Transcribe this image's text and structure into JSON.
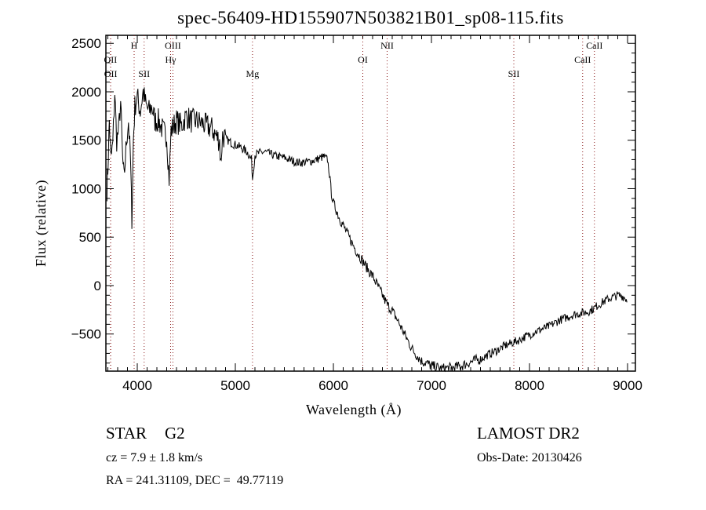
{
  "chart_data": {
    "type": "line",
    "title": "spec-56409-HD155907N503821B01_sp08-115.fits",
    "xlabel": "Wavelength (Å)",
    "ylabel": "Flux (relative)",
    "xlim": [
      3680,
      9080
    ],
    "ylim": [
      -883,
      2583
    ],
    "xticks": [
      4000,
      5000,
      6000,
      7000,
      8000,
      9000
    ],
    "yticks": [
      -500,
      0,
      500,
      1000,
      1500,
      2000,
      2500
    ],
    "grid": false,
    "series": [
      {
        "name": "spectrum",
        "points": [
          [
            3690,
            1000
          ],
          [
            3700,
            1200
          ],
          [
            3715,
            1700
          ],
          [
            3730,
            1300
          ],
          [
            3750,
            1450
          ],
          [
            3770,
            2000
          ],
          [
            3790,
            1500
          ],
          [
            3810,
            1600
          ],
          [
            3830,
            1900
          ],
          [
            3850,
            1300
          ],
          [
            3865,
            1100
          ],
          [
            3890,
            1500
          ],
          [
            3910,
            1700
          ],
          [
            3930,
            1300
          ],
          [
            3945,
            700
          ],
          [
            3960,
            1500
          ],
          [
            3975,
            1850
          ],
          [
            4000,
            1950
          ],
          [
            4030,
            1800
          ],
          [
            4060,
            2000
          ],
          [
            4090,
            1850
          ],
          [
            4120,
            1800
          ],
          [
            4150,
            1850
          ],
          [
            4180,
            1700
          ],
          [
            4220,
            1700
          ],
          [
            4260,
            1600
          ],
          [
            4300,
            1550
          ],
          [
            4325,
            1100
          ],
          [
            4345,
            1600
          ],
          [
            4370,
            1650
          ],
          [
            4400,
            1700
          ],
          [
            4450,
            1650
          ],
          [
            4500,
            1750
          ],
          [
            4550,
            1700
          ],
          [
            4600,
            1700
          ],
          [
            4650,
            1680
          ],
          [
            4700,
            1650
          ],
          [
            4760,
            1620
          ],
          [
            4800,
            1550
          ],
          [
            4840,
            1500
          ],
          [
            4850,
            1250
          ],
          [
            4870,
            1550
          ],
          [
            4920,
            1500
          ],
          [
            4980,
            1460
          ],
          [
            5050,
            1430
          ],
          [
            5120,
            1380
          ],
          [
            5165,
            1300
          ],
          [
            5175,
            1100
          ],
          [
            5200,
            1350
          ],
          [
            5250,
            1370
          ],
          [
            5300,
            1380
          ],
          [
            5350,
            1360
          ],
          [
            5400,
            1340
          ],
          [
            5450,
            1330
          ],
          [
            5500,
            1320
          ],
          [
            5550,
            1300
          ],
          [
            5600,
            1280
          ],
          [
            5650,
            1270
          ],
          [
            5700,
            1270
          ],
          [
            5750,
            1280
          ],
          [
            5800,
            1290
          ],
          [
            5850,
            1310
          ],
          [
            5900,
            1330
          ],
          [
            5940,
            1300
          ],
          [
            5960,
            1150
          ],
          [
            5980,
            950
          ],
          [
            6000,
            850
          ],
          [
            6030,
            780
          ],
          [
            6060,
            700
          ],
          [
            6100,
            620
          ],
          [
            6150,
            520
          ],
          [
            6200,
            420
          ],
          [
            6250,
            330
          ],
          [
            6300,
            250
          ],
          [
            6350,
            170
          ],
          [
            6400,
            100
          ],
          [
            6450,
            0
          ],
          [
            6500,
            -100
          ],
          [
            6550,
            -200
          ],
          [
            6600,
            -260
          ],
          [
            6650,
            -350
          ],
          [
            6700,
            -450
          ],
          [
            6750,
            -550
          ],
          [
            6800,
            -650
          ],
          [
            6850,
            -720
          ],
          [
            6900,
            -780
          ],
          [
            6950,
            -800
          ],
          [
            7000,
            -830
          ],
          [
            7050,
            -840
          ],
          [
            7100,
            -860
          ],
          [
            7150,
            -850
          ],
          [
            7200,
            -850
          ],
          [
            7250,
            -840
          ],
          [
            7300,
            -830
          ],
          [
            7350,
            -810
          ],
          [
            7400,
            -790
          ],
          [
            7450,
            -770
          ],
          [
            7500,
            -760
          ],
          [
            7550,
            -730
          ],
          [
            7600,
            -700
          ],
          [
            7650,
            -680
          ],
          [
            7700,
            -650
          ],
          [
            7750,
            -620
          ],
          [
            7800,
            -600
          ],
          [
            7850,
            -580
          ],
          [
            7900,
            -560
          ],
          [
            7950,
            -530
          ],
          [
            8000,
            -510
          ],
          [
            8050,
            -480
          ],
          [
            8100,
            -460
          ],
          [
            8150,
            -440
          ],
          [
            8200,
            -420
          ],
          [
            8250,
            -390
          ],
          [
            8300,
            -360
          ],
          [
            8350,
            -340
          ],
          [
            8400,
            -320
          ],
          [
            8450,
            -300
          ],
          [
            8500,
            -290
          ],
          [
            8550,
            -280
          ],
          [
            8600,
            -270
          ],
          [
            8650,
            -240
          ],
          [
            8700,
            -200
          ],
          [
            8750,
            -170
          ],
          [
            8800,
            -140
          ],
          [
            8850,
            -120
          ],
          [
            8900,
            -100
          ],
          [
            8950,
            -110
          ],
          [
            9000,
            -150
          ]
        ]
      }
    ],
    "line_markers": [
      {
        "label": "OII",
        "wavelength": 3727,
        "row": 1
      },
      {
        "label": "OII",
        "wavelength": 3729,
        "row": 2
      },
      {
        "label": "H",
        "wavelength": 3968,
        "row": 0
      },
      {
        "label": "SII",
        "wavelength": 4070,
        "row": 2
      },
      {
        "label": "OIII",
        "wavelength": 4363,
        "row": 0
      },
      {
        "label": "Hγ",
        "wavelength": 4340,
        "row": 1
      },
      {
        "label": "Mg",
        "wavelength": 5175,
        "row": 2
      },
      {
        "label": "OI",
        "wavelength": 6300,
        "row": 1
      },
      {
        "label": "NII",
        "wavelength": 6548,
        "row": 0
      },
      {
        "label": "SII",
        "wavelength": 7840,
        "row": 2
      },
      {
        "label": "CaII",
        "wavelength": 8542,
        "row": 1
      },
      {
        "label": "CaII",
        "wavelength": 8662,
        "row": 0
      }
    ]
  },
  "info": {
    "class": "STAR",
    "subclass": "G2",
    "survey": "LAMOST DR2",
    "cz": "cz = 7.9 ± 1.8 km/s",
    "obs_date": "Obs-Date: 20130426",
    "coords": "RA = 241.31109, DEC =  49.77119"
  },
  "colors": {
    "marker": "#8b1a1a",
    "line": "#000000"
  }
}
